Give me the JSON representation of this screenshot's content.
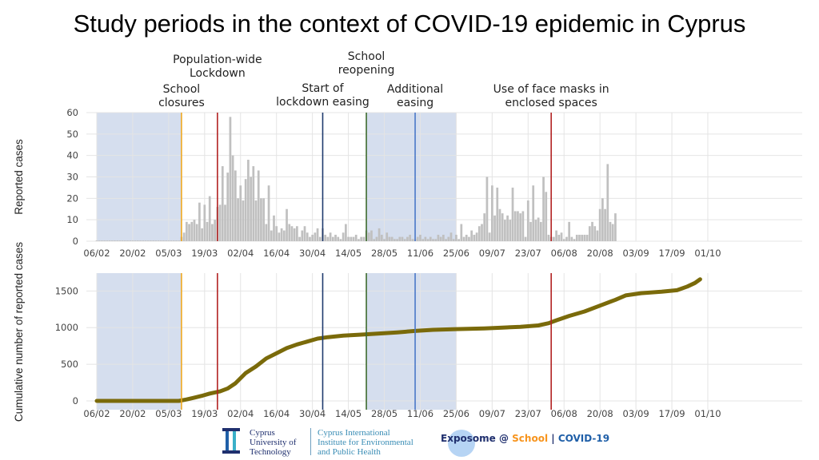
{
  "title": "Study periods in the context of COVID-19 epidemic in Cyprus",
  "annotations": [
    {
      "id": "school-closures",
      "text": "School\nclosures",
      "date": "10/03",
      "color": "#f0a820"
    },
    {
      "id": "population-lockdown",
      "text": "Population-wide\nLockdown",
      "date": "24/03",
      "color": "#b22222"
    },
    {
      "id": "lockdown-easing",
      "text": "Start of\nlockdown easing",
      "date": "04/05",
      "color": "#1f3a6e"
    },
    {
      "id": "school-reopening",
      "text": "School\nreopening",
      "date": "21/05",
      "color": "#3d6b2e"
    },
    {
      "id": "additional-easing",
      "text": "Additional\neasing",
      "date": "09/06",
      "color": "#4a78c8"
    },
    {
      "id": "face-masks",
      "text": "Use of face masks in\nenclosed spaces",
      "date": "01/08",
      "color": "#b22222"
    }
  ],
  "study_periods": [
    {
      "start": "06/02",
      "end": "10/03",
      "color": "#c7d3e8"
    },
    {
      "start": "21/05",
      "end": "25/06",
      "color": "#c7d3e8"
    }
  ],
  "footer": {
    "cut_lines": [
      "Cyprus",
      "University of",
      "Technology"
    ],
    "ciiehph_lines": [
      "Cyprus International",
      "Institute for Environmental",
      "and Public Health"
    ],
    "exposome_a": "Exposome @ ",
    "exposome_school": "School",
    "exposome_sep": " | ",
    "exposome_covid": "COVID-19"
  },
  "chart_data": [
    {
      "type": "bar",
      "ylabel": "Reported cases",
      "xlabel": "",
      "ylim": [
        0,
        60
      ],
      "yticks": [
        0,
        10,
        20,
        30,
        40,
        50,
        60
      ],
      "xticks": [
        "06/02",
        "20/02",
        "05/03",
        "19/03",
        "02/04",
        "16/04",
        "30/04",
        "14/05",
        "28/05",
        "11/06",
        "25/06",
        "09/07",
        "23/07",
        "06/08",
        "20/08",
        "03/09",
        "17/09",
        "01/10"
      ],
      "start_date": "06/02",
      "color": "#c0c0c0",
      "grid": true,
      "values": [
        0,
        0,
        0,
        0,
        0,
        0,
        0,
        0,
        0,
        0,
        0,
        0,
        0,
        0,
        0,
        0,
        0,
        0,
        0,
        0,
        0,
        0,
        0,
        0,
        0,
        0,
        0,
        0,
        0,
        0,
        0,
        0,
        0,
        2,
        4,
        9,
        8,
        9,
        10,
        8,
        18,
        6,
        17,
        9,
        21,
        8,
        10,
        16,
        17,
        35,
        17,
        32,
        58,
        40,
        33,
        20,
        26,
        19,
        29,
        38,
        30,
        35,
        19,
        33,
        20,
        20,
        8,
        26,
        5,
        12,
        7,
        4,
        6,
        5,
        15,
        8,
        7,
        6,
        7,
        2,
        5,
        7,
        4,
        2,
        3,
        4,
        6,
        2,
        6,
        3,
        2,
        4,
        2,
        3,
        2,
        1,
        4,
        8,
        2,
        2,
        2,
        3,
        1,
        2,
        2,
        5,
        4,
        5,
        1,
        2,
        6,
        3,
        1,
        4,
        2,
        2,
        1,
        1,
        2,
        2,
        1,
        2,
        3,
        1,
        1,
        2,
        3,
        1,
        2,
        1,
        2,
        1,
        1,
        3,
        2,
        3,
        1,
        2,
        4,
        1,
        3,
        1,
        8,
        2,
        3,
        2,
        5,
        3,
        4,
        7,
        8,
        13,
        30,
        4,
        26,
        12,
        25,
        15,
        13,
        10,
        12,
        10,
        25,
        14,
        14,
        13,
        14,
        2,
        19,
        9,
        26,
        10,
        11,
        9,
        30,
        23,
        3,
        2,
        2,
        5,
        3,
        4,
        1,
        2,
        9,
        2,
        1,
        3,
        3,
        3,
        3,
        3,
        7,
        9,
        7,
        5,
        15,
        20,
        15,
        36,
        9,
        8,
        13
      ]
    },
    {
      "type": "line",
      "ylabel": "Cumulative number of reported cases",
      "xlabel": "",
      "ylim": [
        0,
        1700
      ],
      "yticks": [
        0,
        500,
        1000,
        1500
      ],
      "xticks": [
        "06/02",
        "20/02",
        "05/03",
        "19/03",
        "02/04",
        "16/04",
        "30/04",
        "14/05",
        "28/05",
        "11/06",
        "25/06",
        "09/07",
        "23/07",
        "06/08",
        "20/08",
        "03/09",
        "17/09",
        "01/10"
      ],
      "color": "#7a6a0a",
      "grid": true,
      "series": [
        {
          "points": [
            [
              "06/02",
              0
            ],
            [
              "09/03",
              0
            ],
            [
              "12/03",
              20
            ],
            [
              "15/03",
              45
            ],
            [
              "18/03",
              70
            ],
            [
              "21/03",
              100
            ],
            [
              "25/03",
              130
            ],
            [
              "28/03",
              170
            ],
            [
              "31/03",
              240
            ],
            [
              "04/04",
              380
            ],
            [
              "08/04",
              470
            ],
            [
              "12/04",
              580
            ],
            [
              "16/04",
              650
            ],
            [
              "20/04",
              720
            ],
            [
              "24/04",
              770
            ],
            [
              "28/04",
              810
            ],
            [
              "02/05",
              850
            ],
            [
              "06/05",
              870
            ],
            [
              "12/05",
              890
            ],
            [
              "19/05",
              905
            ],
            [
              "26/05",
              920
            ],
            [
              "02/06",
              935
            ],
            [
              "09/06",
              955
            ],
            [
              "16/06",
              970
            ],
            [
              "25/06",
              980
            ],
            [
              "06/07",
              990
            ],
            [
              "13/07",
              1000
            ],
            [
              "20/07",
              1010
            ],
            [
              "27/07",
              1030
            ],
            [
              "31/07",
              1060
            ],
            [
              "03/08",
              1100
            ],
            [
              "08/08",
              1160
            ],
            [
              "14/08",
              1220
            ],
            [
              "20/08",
              1300
            ],
            [
              "26/08",
              1380
            ],
            [
              "30/08",
              1440
            ],
            [
              "05/09",
              1470
            ],
            [
              "13/09",
              1490
            ],
            [
              "19/09",
              1510
            ],
            [
              "23/09",
              1560
            ],
            [
              "26/09",
              1610
            ],
            [
              "28/09",
              1660
            ]
          ]
        }
      ]
    }
  ]
}
